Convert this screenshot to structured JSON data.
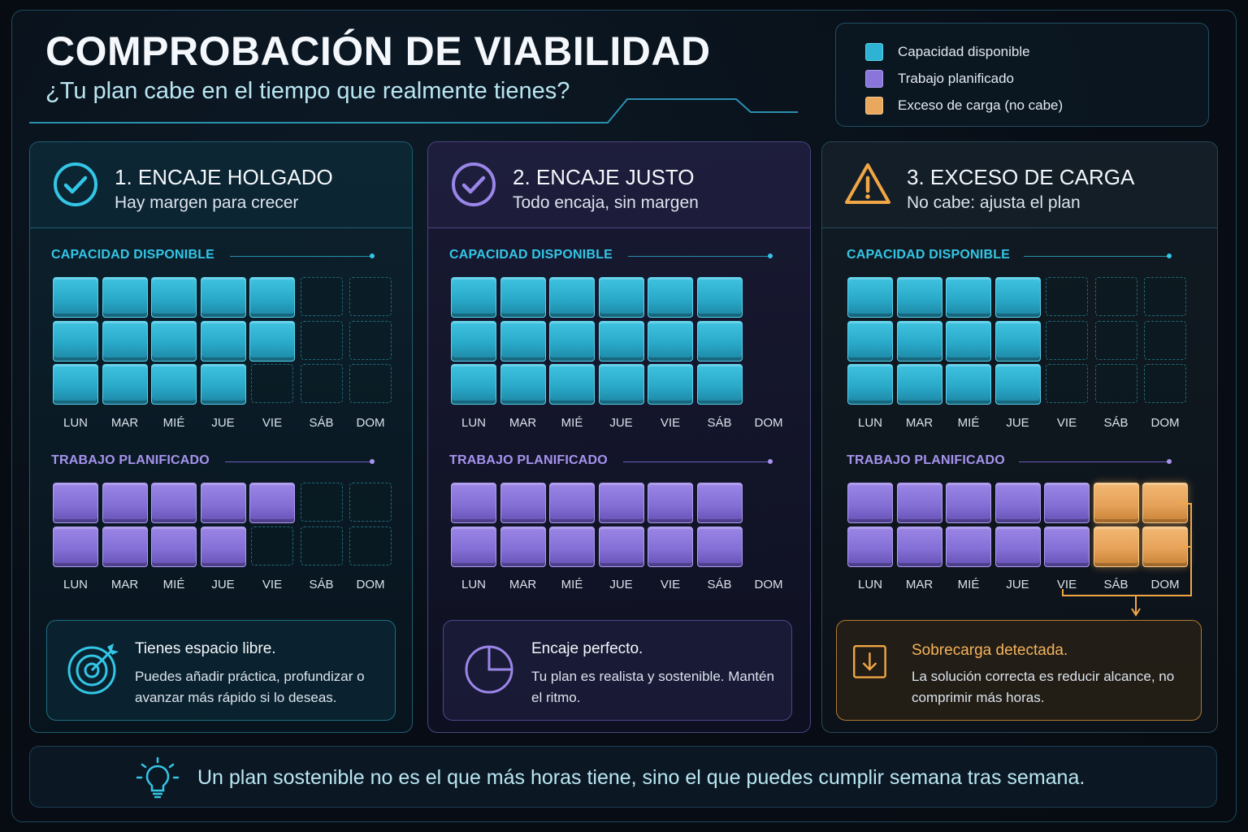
{
  "header": {
    "title": "COMPROBACIÓN DE VIABILIDAD",
    "subtitle": "¿Tu plan cabe en el tiempo que realmente tienes?"
  },
  "legend": [
    {
      "label": "Capacidad disponible",
      "color": "#2eb3d4"
    },
    {
      "label": "Trabajo planificado",
      "color": "#8a76da"
    },
    {
      "label": "Exceso de carga (no cabe)",
      "color": "#eaa85f"
    }
  ],
  "days": [
    "LUN",
    "MAR",
    "MIÉ",
    "JUE",
    "VIE",
    "SÁB",
    "DOM"
  ],
  "sections": {
    "capacity_label": "CAPACIDAD DISPONIBLE",
    "work_label": "TRABAJO PLANIFICADO"
  },
  "panels": [
    {
      "title": "1. ENCAJE HOLGADO",
      "subtitle": "Hay margen para crecer",
      "icon": "check-circle-icon",
      "accent": "#33c6e6",
      "capacity_blocks": [
        3,
        3,
        3,
        3,
        2,
        0,
        0
      ],
      "work_blocks": [
        2,
        2,
        2,
        2,
        1,
        0,
        0
      ],
      "overflow_blocks": [
        0,
        0,
        0,
        0,
        0,
        0,
        0
      ],
      "note_title": "Tienes espacio libre.",
      "note_text": "Puedes añadir práctica, profundizar o avanzar más rápido si lo deseas.",
      "note_icon": "target-icon"
    },
    {
      "title": "2. ENCAJE JUSTO",
      "subtitle": "Todo encaja, sin margen",
      "icon": "check-circle-icon",
      "accent": "#9a86e8",
      "capacity_blocks": [
        3,
        3,
        3,
        3,
        3,
        3,
        0
      ],
      "work_blocks": [
        2,
        2,
        2,
        2,
        2,
        2,
        0
      ],
      "overflow_blocks": [
        0,
        0,
        0,
        0,
        0,
        0,
        0
      ],
      "note_title": "Encaje perfecto.",
      "note_text": "Tu plan es realista y sostenible. Mantén el ritmo.",
      "note_icon": "pie-chart-icon"
    },
    {
      "title": "3. EXCESO DE CARGA",
      "subtitle": "No cabe: ajusta el plan",
      "icon": "warning-icon",
      "accent": "#f0a645",
      "capacity_blocks": [
        3,
        3,
        3,
        3,
        0,
        0,
        0
      ],
      "work_blocks": [
        2,
        2,
        2,
        2,
        2,
        0,
        0
      ],
      "overflow_blocks": [
        0,
        0,
        0,
        0,
        0,
        2,
        2
      ],
      "note_title": "Sobrecarga detectada.",
      "note_text": "La solución correcta es reducir alcance, no comprimir más horas.",
      "note_icon": "download-arrow-icon"
    }
  ],
  "footer": {
    "text": "Un plan sostenible no es el que más horas tiene, sino el que puedes cumplir semana tras semana.",
    "icon": "lightbulb-icon"
  }
}
